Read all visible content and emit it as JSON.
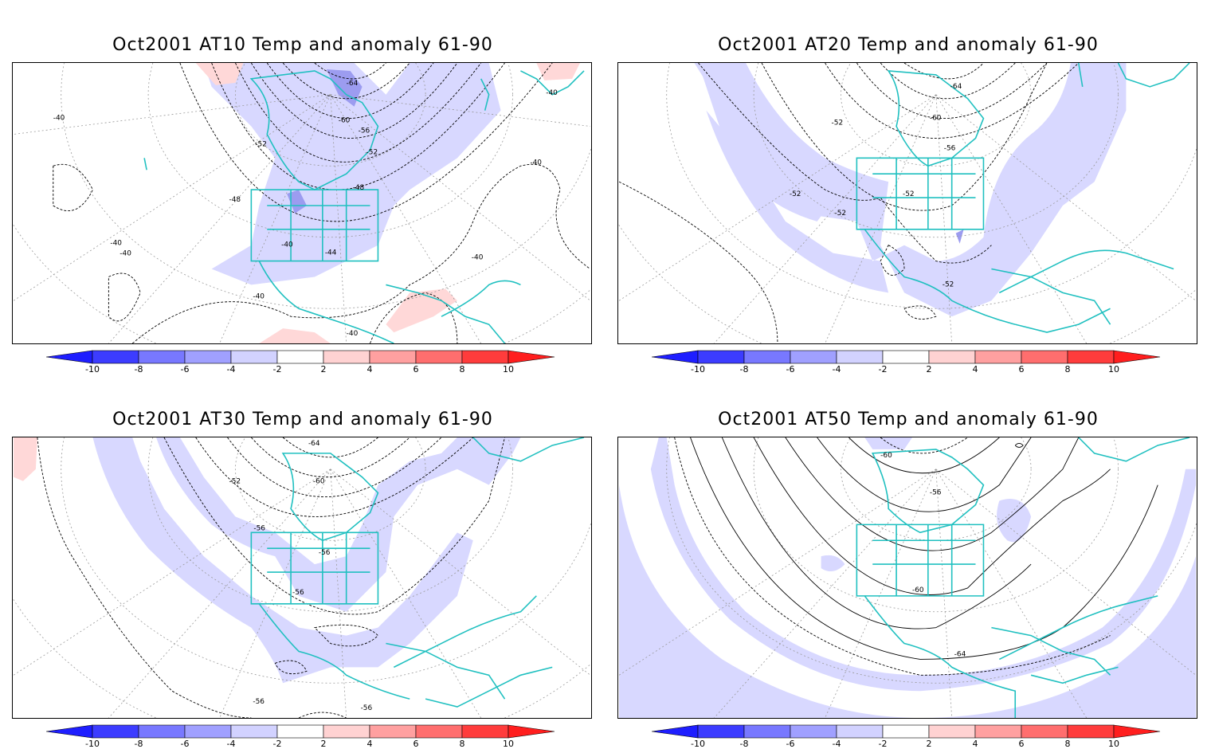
{
  "panels": [
    {
      "title": "Oct2001 AT10 Temp and anomaly 61-90",
      "contour_labels": [
        "-64",
        "-60",
        "-56",
        "-52",
        "-52",
        "-48",
        "-48",
        "-44",
        "-40",
        "-40",
        "-40",
        "-40",
        "-40",
        "-40",
        "-40",
        "-40",
        "-40"
      ]
    },
    {
      "title": "Oct2001 AT20 Temp and anomaly 61-90",
      "contour_labels": [
        "-64",
        "-60",
        "-56",
        "-52",
        "-52",
        "-52",
        "-52",
        "-52"
      ]
    },
    {
      "title": "Oct2001 AT30 Temp and anomaly 61-90",
      "contour_labels": [
        "-64",
        "-60",
        "-56",
        "-56",
        "-56",
        "-52",
        "-56",
        "-56"
      ]
    },
    {
      "title": "Oct2001 AT50 Temp and anomaly 61-90",
      "contour_labels": [
        "-60",
        "-56",
        "-60",
        "-64"
      ]
    }
  ],
  "colorbar": {
    "labels": [
      "-10",
      "-8",
      "-6",
      "-4",
      "-2",
      "2",
      "4",
      "6",
      "8",
      "10"
    ],
    "colors": [
      "#1e1eff",
      "#3c3cff",
      "#7878ff",
      "#a0a0ff",
      "#d2d2ff",
      "#ffffff",
      "#ffd2d2",
      "#ffa0a0",
      "#ff6e6e",
      "#ff3c3c",
      "#ff1e1e"
    ]
  },
  "map_colors": {
    "coast": "#20c0c0",
    "neg_anom_light": "#d8d8ff",
    "neg_anom_mid": "#9c9cf0",
    "pos_anom_light": "#ffd8d8"
  }
}
